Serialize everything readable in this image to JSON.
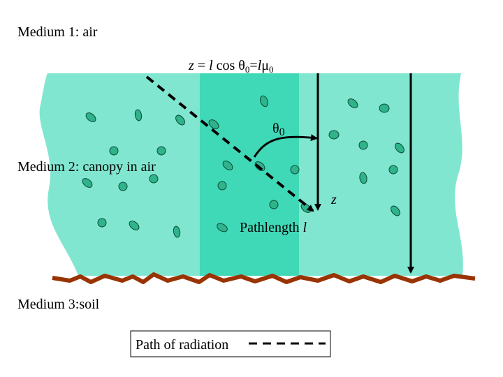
{
  "medium1": "Medium 1: air",
  "formula": [
    "z",
    " = ",
    "l",
    " cos θ",
    "0",
    "=",
    "l",
    "μ",
    "0"
  ],
  "theta": [
    "θ",
    "0"
  ],
  "medium2": "Medium 2: canopy in air",
  "z_label": "z",
  "pathlength": [
    "Pathlength ",
    "l"
  ],
  "medium3": "Medium 3:soil",
  "legend": "Path of radiation"
}
